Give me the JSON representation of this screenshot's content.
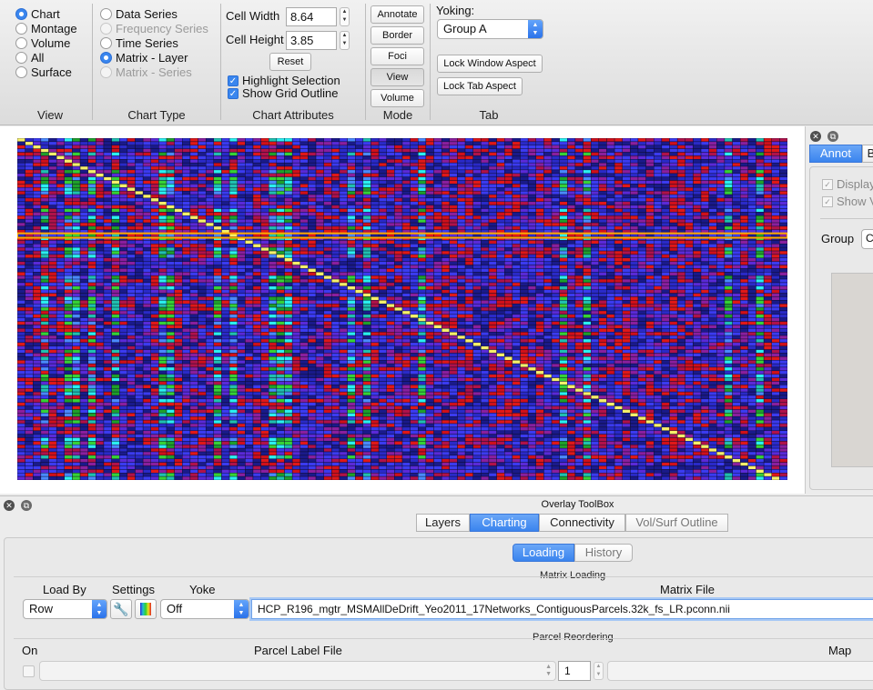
{
  "toolbar": {
    "view": {
      "title": "View",
      "options": [
        {
          "label": "Chart",
          "selected": true
        },
        {
          "label": "Montage",
          "selected": false
        },
        {
          "label": "Volume",
          "selected": false
        },
        {
          "label": "All",
          "selected": false
        },
        {
          "label": "Surface",
          "selected": false
        }
      ]
    },
    "chart_type": {
      "title": "Chart Type",
      "options": [
        {
          "label": "Data Series",
          "selected": false,
          "enabled": true
        },
        {
          "label": "Frequency Series",
          "selected": false,
          "enabled": false
        },
        {
          "label": "Time Series",
          "selected": false,
          "enabled": true
        },
        {
          "label": "Matrix - Layer",
          "selected": true,
          "enabled": true
        },
        {
          "label": "Matrix - Series",
          "selected": false,
          "enabled": false
        }
      ]
    },
    "chart_attributes": {
      "title": "Chart Attributes",
      "cell_width_label": "Cell Width",
      "cell_width_value": "8.64",
      "cell_height_label": "Cell Height",
      "cell_height_value": "3.85",
      "reset_label": "Reset",
      "highlight_selection_label": "Highlight Selection",
      "highlight_selection_checked": true,
      "show_grid_outline_label": "Show Grid Outline",
      "show_grid_outline_checked": true
    },
    "mode": {
      "title": "Mode",
      "buttons": [
        "Annotate",
        "Border",
        "Foci",
        "View",
        "Volume"
      ],
      "active": "View"
    },
    "tab": {
      "title": "Tab",
      "yoking_label": "Yoking:",
      "yoking_value": "Group A",
      "lock_window_aspect_label": "Lock Window Aspect",
      "lock_tab_aspect_label": "Lock Tab Aspect"
    }
  },
  "right_panel": {
    "close_glyph": "✕",
    "float_glyph": "⧉",
    "tabs": [
      "Annot",
      "B"
    ],
    "display_label": "Display",
    "show_label": "Show V",
    "group_label": "Group",
    "group_value": "C"
  },
  "overlay": {
    "title": "Overlay ToolBox",
    "close_glyph": "✕",
    "float_glyph": "⧉",
    "tabs": [
      "Layers",
      "Charting",
      "Connectivity",
      "Vol/Surf Outline"
    ],
    "active_tab": "Charting",
    "subtabs": [
      "Loading",
      "History"
    ],
    "active_subtab": "Loading",
    "matrix_loading": {
      "heading": "Matrix Loading",
      "load_by_label": "Load By",
      "settings_label": "Settings",
      "yoke_label": "Yoke",
      "matrix_file_label": "Matrix File",
      "load_by_value": "Row",
      "yoke_value": "Off",
      "matrix_file_value": "HCP_R196_mgtr_MSMAllDeDrift_Yeo2011_17Networks_ContiguousParcels.32k_fs_LR.pconn.nii"
    },
    "parcel_reordering": {
      "heading": "Parcel Reordering",
      "on_label": "On",
      "parcel_label_file_label": "Parcel Label File",
      "map_label": "Map",
      "map_index_value": "1"
    }
  },
  "matrix": {
    "rows": 97,
    "cols": 98,
    "selected_row": 27,
    "palette": [
      "#1a1a8a",
      "#2a2ac8",
      "#3b3bf0",
      "#5a2ad8",
      "#8a1f9e",
      "#b0124a",
      "#d0101a",
      "#e01818",
      "#1fa02a",
      "#36d236",
      "#20c0b0",
      "#2af0f0",
      "#4a8aff"
    ],
    "diagonal_color": "#f6f06a",
    "highlight_color": "#ffaa00"
  }
}
